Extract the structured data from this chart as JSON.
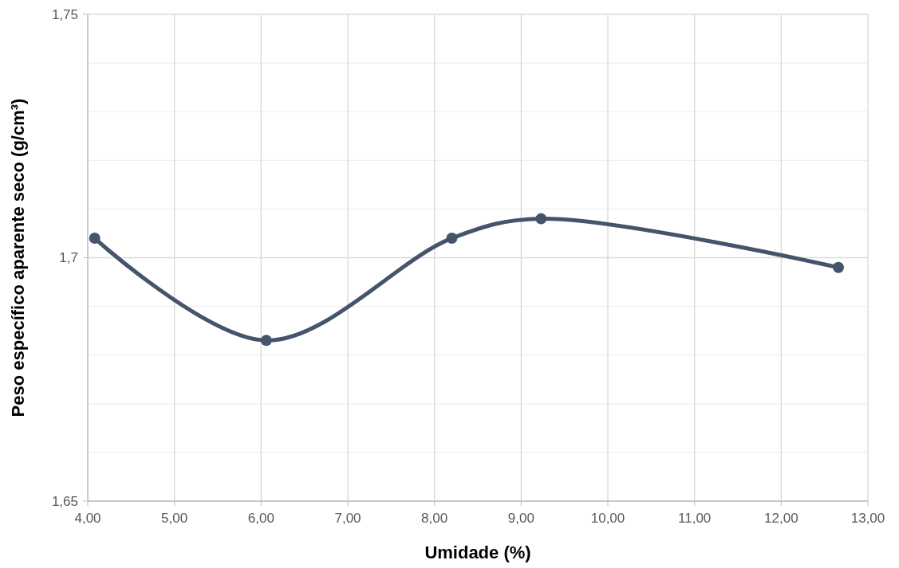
{
  "chart_data": {
    "type": "line",
    "xlabel": "Umidade (%)",
    "ylabel": "Peso específico aparente seco (g/cm³)",
    "x": [
      4.08,
      6.06,
      8.2,
      9.23,
      12.66
    ],
    "series": [
      {
        "color": "#44546a",
        "values": [
          1.704,
          1.683,
          1.704,
          1.708,
          1.698
        ]
      }
    ],
    "xlim": [
      4,
      13
    ],
    "xticks": [
      {
        "value": 4,
        "label": "4,00"
      },
      {
        "value": 5,
        "label": "5,00"
      },
      {
        "value": 6,
        "label": "6,00"
      },
      {
        "value": 7,
        "label": "7,00"
      },
      {
        "value": 8,
        "label": "8,00"
      },
      {
        "value": 9,
        "label": "9,00"
      },
      {
        "value": 10,
        "label": "10,00"
      },
      {
        "value": 11,
        "label": "11,00"
      },
      {
        "value": 12,
        "label": "12,00"
      },
      {
        "value": 13,
        "label": "13,00"
      }
    ],
    "ylim": [
      1.65,
      1.75
    ],
    "yticks": [
      {
        "value": 1.65,
        "label": "1,65"
      },
      {
        "value": 1.66,
        "label": null
      },
      {
        "value": 1.67,
        "label": null
      },
      {
        "value": 1.68,
        "label": null
      },
      {
        "value": 1.69,
        "label": null
      },
      {
        "value": 1.7,
        "label": "1,7"
      },
      {
        "value": 1.71,
        "label": null
      },
      {
        "value": 1.72,
        "label": null
      },
      {
        "value": 1.73,
        "label": null
      },
      {
        "value": 1.74,
        "label": null
      },
      {
        "value": 1.75,
        "label": "1,75"
      }
    ],
    "grid": true,
    "marker": "circle",
    "line_style": "solid"
  }
}
